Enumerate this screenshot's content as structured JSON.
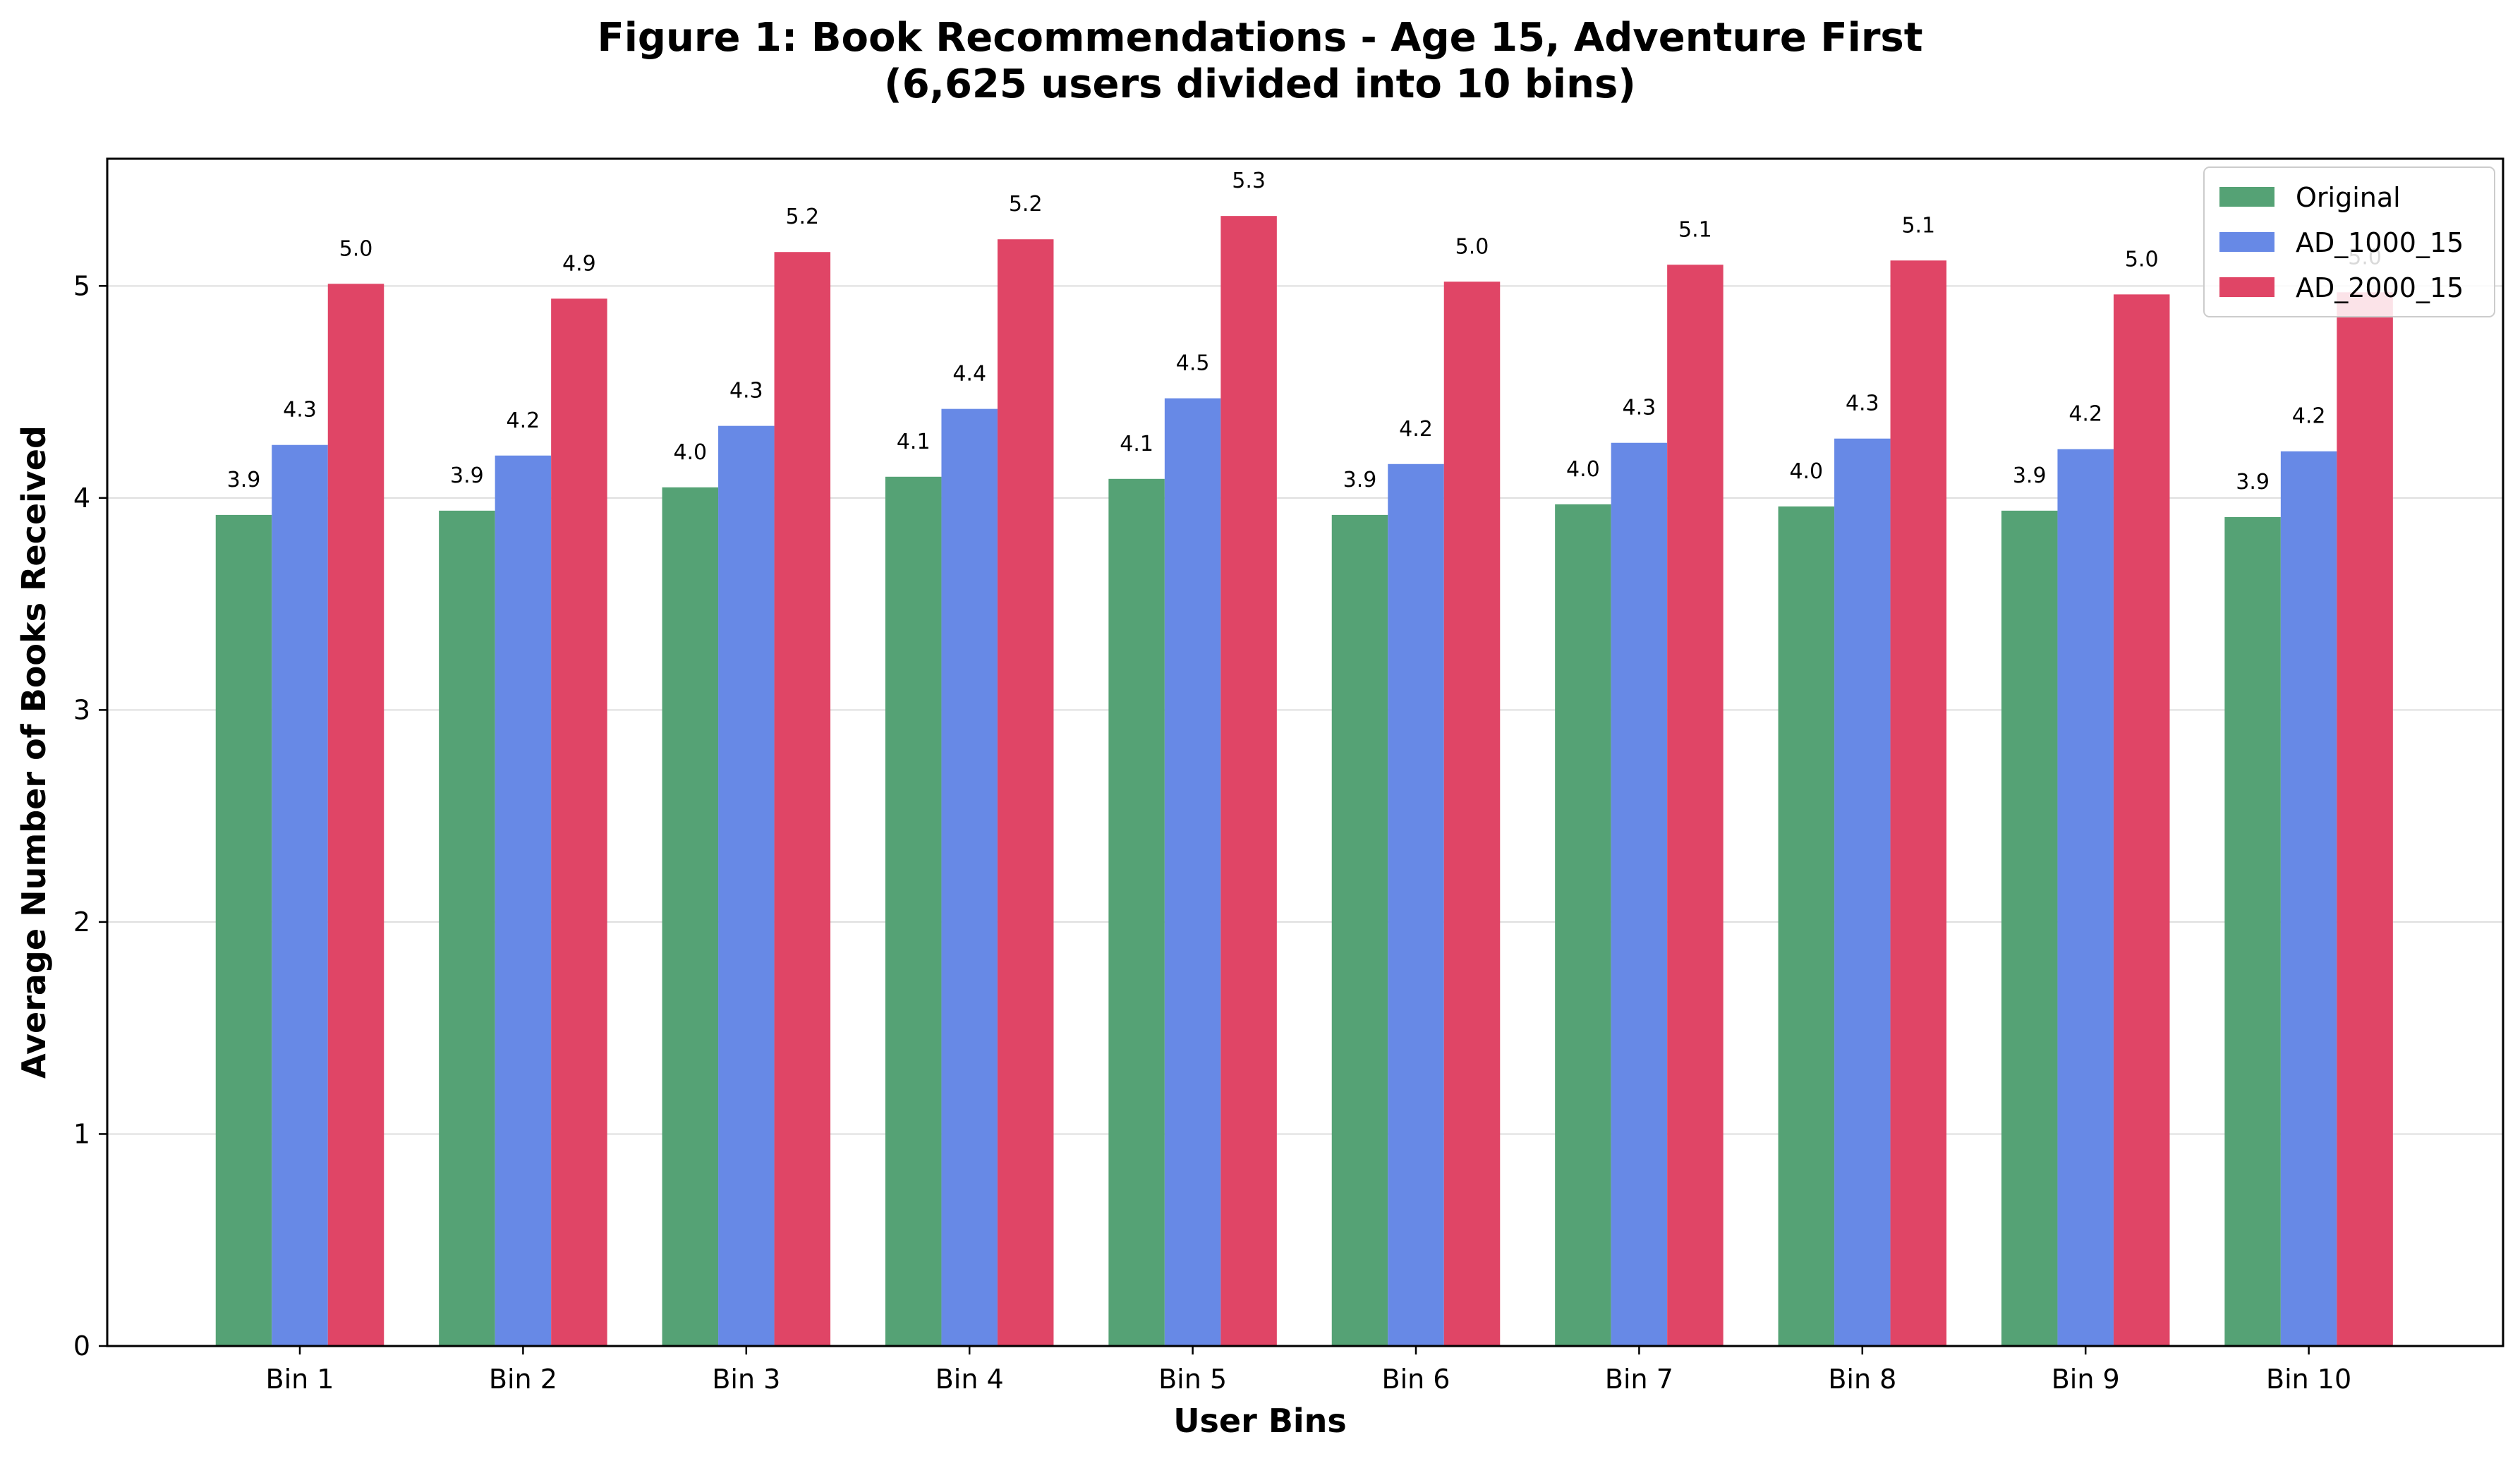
{
  "chart_data": {
    "type": "bar",
    "title": "Figure 1: Book Recommendations - Age 15, Adventure First",
    "subtitle": "(6,625 users divided into 10 bins)",
    "xlabel": "User Bins",
    "ylabel": "Average Number of Books Received",
    "ylim": [
      0,
      5.6
    ],
    "yticks": [
      "0",
      "1",
      "2",
      "3",
      "4",
      "5"
    ],
    "grid": "y",
    "legend_position": "top-right",
    "categories": [
      "Bin 1",
      "Bin 2",
      "Bin 3",
      "Bin 4",
      "Bin 5",
      "Bin 6",
      "Bin 7",
      "Bin 8",
      "Bin 9",
      "Bin 10"
    ],
    "series": [
      {
        "name": "Original",
        "color": "#55A275",
        "values": [
          3.92,
          3.94,
          4.05,
          4.1,
          4.09,
          3.92,
          3.97,
          3.96,
          3.94,
          3.91
        ],
        "labels": [
          "3.9",
          "3.9",
          "4.0",
          "4.1",
          "4.1",
          "3.9",
          "4.0",
          "4.0",
          "3.9",
          "3.9"
        ]
      },
      {
        "name": "AD_1000_15",
        "color": "#6789E6",
        "values": [
          4.25,
          4.2,
          4.34,
          4.42,
          4.47,
          4.16,
          4.26,
          4.28,
          4.23,
          4.22
        ],
        "labels": [
          "4.3",
          "4.2",
          "4.3",
          "4.4",
          "4.5",
          "4.2",
          "4.3",
          "4.3",
          "4.2",
          "4.2"
        ]
      },
      {
        "name": "AD_2000_15",
        "color": "#E04566",
        "values": [
          5.01,
          4.94,
          5.16,
          5.22,
          5.33,
          5.02,
          5.1,
          5.12,
          4.96,
          4.97
        ],
        "labels": [
          "5.0",
          "4.9",
          "5.2",
          "5.2",
          "5.3",
          "5.0",
          "5.1",
          "5.1",
          "5.0",
          "5.0"
        ]
      }
    ]
  }
}
